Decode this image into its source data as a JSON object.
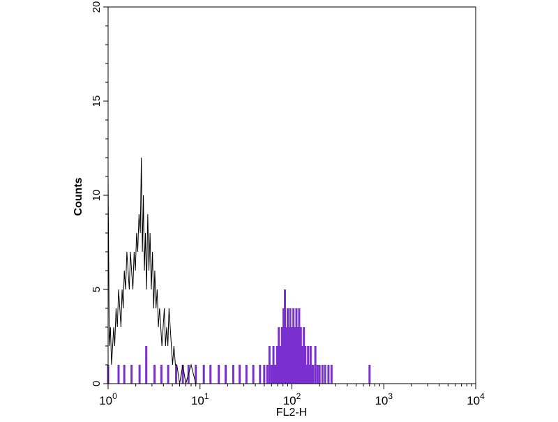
{
  "chart_data": {
    "type": "histogram",
    "xlabel": "FL2-H",
    "ylabel": "Counts",
    "x_scale": "log",
    "xlim": [
      1,
      10000
    ],
    "ylim": [
      0,
      20
    ],
    "x_ticks": [
      {
        "base": "10",
        "exp": "0"
      },
      {
        "base": "10",
        "exp": "1"
      },
      {
        "base": "10",
        "exp": "2"
      },
      {
        "base": "10",
        "exp": "3"
      },
      {
        "base": "10",
        "exp": "4"
      }
    ],
    "y_ticks": [
      "0",
      "5",
      "10",
      "15",
      "20"
    ],
    "grid": false,
    "colors": {
      "filled": "#7a2fd0",
      "outline": "#000000",
      "axis": "#000000"
    },
    "series": [
      {
        "style": "outline",
        "points": [
          [
            1.0,
            11
          ],
          [
            1.03,
            2
          ],
          [
            1.06,
            3
          ],
          [
            1.09,
            1
          ],
          [
            1.12,
            2
          ],
          [
            1.15,
            3
          ],
          [
            1.18,
            2
          ],
          [
            1.22,
            4
          ],
          [
            1.26,
            3
          ],
          [
            1.3,
            5
          ],
          [
            1.34,
            4
          ],
          [
            1.38,
            3
          ],
          [
            1.42,
            5
          ],
          [
            1.46,
            4
          ],
          [
            1.5,
            6
          ],
          [
            1.55,
            5
          ],
          [
            1.6,
            7
          ],
          [
            1.65,
            6
          ],
          [
            1.7,
            5
          ],
          [
            1.75,
            7
          ],
          [
            1.8,
            6
          ],
          [
            1.86,
            5
          ],
          [
            1.92,
            7
          ],
          [
            1.98,
            6
          ],
          [
            2.04,
            8
          ],
          [
            2.1,
            7
          ],
          [
            2.17,
            9
          ],
          [
            2.24,
            8
          ],
          [
            2.3,
            12
          ],
          [
            2.36,
            7
          ],
          [
            2.42,
            10
          ],
          [
            2.48,
            6
          ],
          [
            2.55,
            8
          ],
          [
            2.62,
            5
          ],
          [
            2.7,
            9
          ],
          [
            2.78,
            6
          ],
          [
            2.86,
            8
          ],
          [
            2.95,
            5
          ],
          [
            3.04,
            7
          ],
          [
            3.13,
            4
          ],
          [
            3.22,
            6
          ],
          [
            3.32,
            4
          ],
          [
            3.42,
            5
          ],
          [
            3.52,
            3
          ],
          [
            3.63,
            4
          ],
          [
            3.74,
            3
          ],
          [
            3.85,
            2
          ],
          [
            3.97,
            3
          ],
          [
            4.09,
            4
          ],
          [
            4.21,
            2
          ],
          [
            4.34,
            3
          ],
          [
            4.47,
            2
          ],
          [
            4.6,
            4
          ],
          [
            4.74,
            3
          ],
          [
            4.88,
            2
          ],
          [
            5.03,
            1
          ],
          [
            5.2,
            2
          ],
          [
            5.4,
            1
          ],
          [
            5.6,
            1
          ],
          [
            6.0,
            0
          ],
          [
            6.5,
            1
          ],
          [
            7.0,
            0
          ],
          [
            8.0,
            1
          ],
          [
            9.0,
            0
          ],
          [
            10.0,
            0
          ]
        ]
      },
      {
        "style": "filled",
        "points": [
          [
            1.0,
            1
          ],
          [
            1.3,
            1
          ],
          [
            1.5,
            1
          ],
          [
            1.8,
            1
          ],
          [
            2.2,
            1
          ],
          [
            2.6,
            2
          ],
          [
            3.2,
            1
          ],
          [
            3.8,
            1
          ],
          [
            4.5,
            1
          ],
          [
            5.5,
            1
          ],
          [
            6.5,
            1
          ],
          [
            7.5,
            1
          ],
          [
            9.0,
            1
          ],
          [
            11.0,
            1
          ],
          [
            13.0,
            1
          ],
          [
            16.0,
            1
          ],
          [
            19.0,
            1
          ],
          [
            23.0,
            1
          ],
          [
            27.0,
            1
          ],
          [
            32.0,
            1
          ],
          [
            38.0,
            1
          ],
          [
            45.0,
            1
          ],
          [
            50.0,
            1
          ],
          [
            54.0,
            1
          ],
          [
            57.0,
            2
          ],
          [
            60.0,
            1
          ],
          [
            63.0,
            2
          ],
          [
            66.0,
            1
          ],
          [
            69.0,
            2
          ],
          [
            72.0,
            3
          ],
          [
            75.0,
            2
          ],
          [
            78.0,
            3
          ],
          [
            81.0,
            4
          ],
          [
            84.0,
            5
          ],
          [
            87.0,
            3
          ],
          [
            90.0,
            4
          ],
          [
            93.0,
            3
          ],
          [
            96.0,
            4
          ],
          [
            100,
            3
          ],
          [
            104,
            4
          ],
          [
            108,
            3
          ],
          [
            112,
            4
          ],
          [
            116,
            3
          ],
          [
            120,
            4
          ],
          [
            125,
            3
          ],
          [
            130,
            2
          ],
          [
            135,
            3
          ],
          [
            140,
            2
          ],
          [
            145,
            1
          ],
          [
            150,
            2
          ],
          [
            155,
            1
          ],
          [
            160,
            2
          ],
          [
            165,
            1
          ],
          [
            170,
            1
          ],
          [
            180,
            2
          ],
          [
            190,
            1
          ],
          [
            200,
            1
          ],
          [
            215,
            1
          ],
          [
            230,
            1
          ],
          [
            250,
            1
          ],
          [
            270,
            1
          ],
          [
            700,
            1
          ]
        ]
      }
    ]
  }
}
